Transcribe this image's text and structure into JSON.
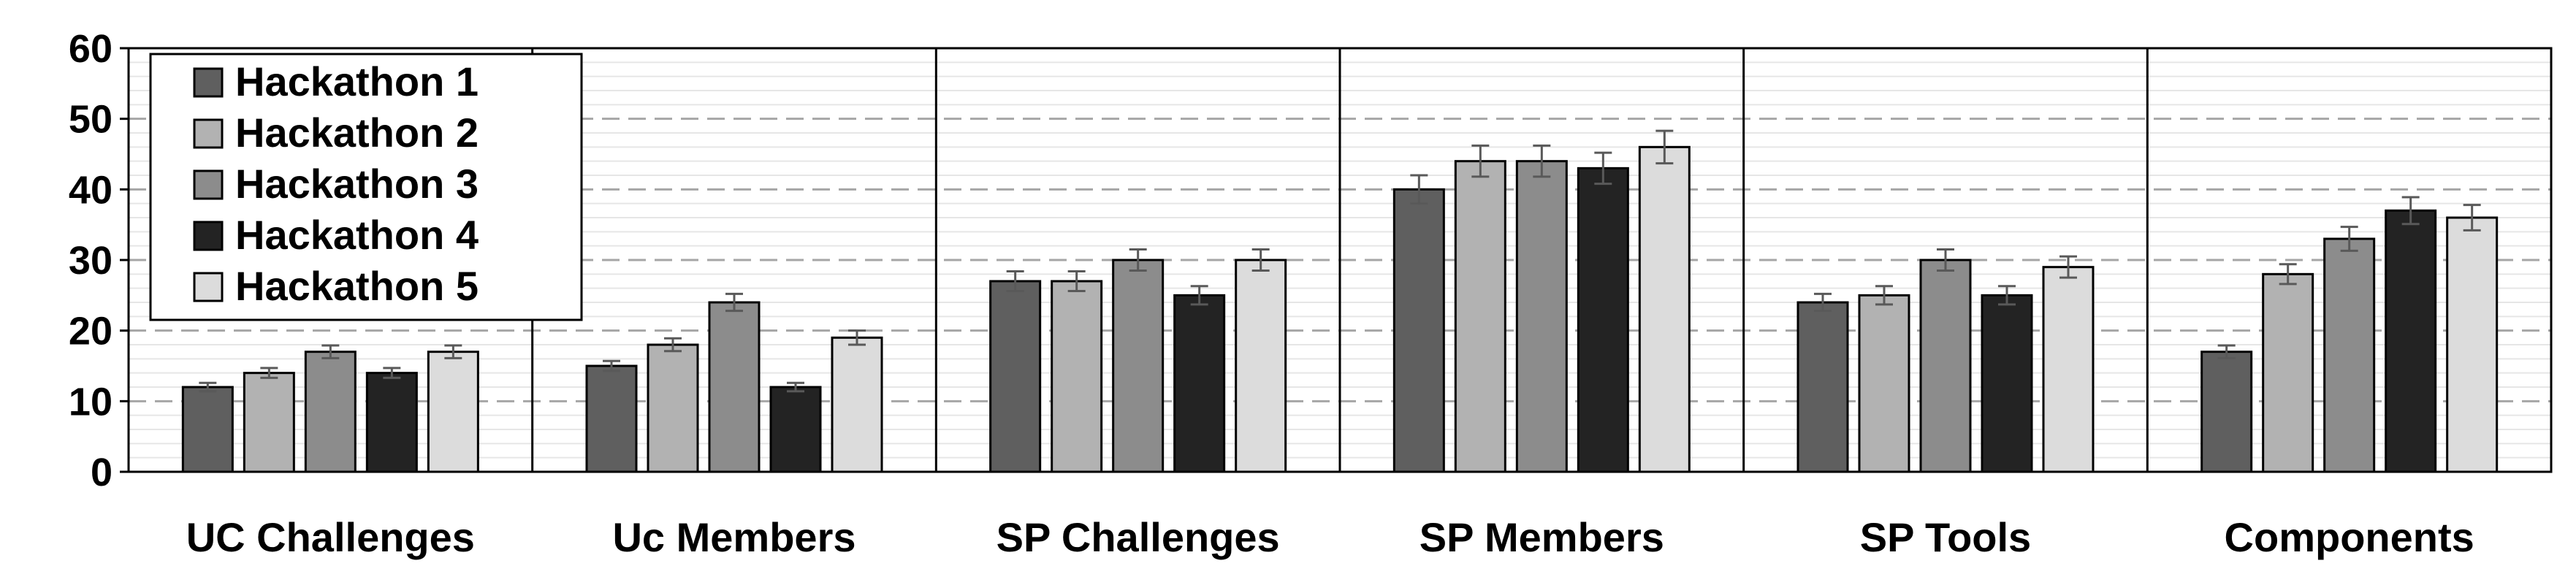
{
  "chart_data": {
    "type": "bar",
    "categories": [
      "UC Challenges",
      "Uc Members",
      "SP Challenges",
      "SP Members",
      "SP Tools",
      "Components"
    ],
    "series": [
      {
        "name": "Hackathon 1",
        "color": "#5f5f5f",
        "values": [
          12,
          15,
          27,
          40,
          24,
          17
        ],
        "errors": [
          0.6,
          0.7,
          1.4,
          2.0,
          1.2,
          0.9
        ]
      },
      {
        "name": "Hackathon 2",
        "color": "#b2b2b2",
        "values": [
          14,
          18,
          27,
          44,
          25,
          28
        ],
        "errors": [
          0.7,
          0.9,
          1.4,
          2.2,
          1.3,
          1.4
        ]
      },
      {
        "name": "Hackathon 3",
        "color": "#8c8c8c",
        "values": [
          17,
          24,
          30,
          44,
          30,
          33
        ],
        "errors": [
          0.9,
          1.2,
          1.5,
          2.2,
          1.5,
          1.7
        ]
      },
      {
        "name": "Hackathon 4",
        "color": "#232323",
        "values": [
          14,
          12,
          25,
          43,
          25,
          37
        ],
        "errors": [
          0.7,
          0.6,
          1.3,
          2.2,
          1.3,
          1.9
        ]
      },
      {
        "name": "Hackathon 5",
        "color": "#dcdcdc",
        "values": [
          17,
          19,
          30,
          46,
          29,
          36
        ],
        "errors": [
          0.9,
          1.0,
          1.5,
          2.3,
          1.5,
          1.8
        ]
      }
    ],
    "ylim": [
      0,
      60
    ],
    "yticks": [
      "0",
      "10",
      "20",
      "30",
      "40",
      "50",
      "60"
    ],
    "title": "",
    "xlabel": "",
    "ylabel": "",
    "grid": "horizontal dashed major, light minor",
    "legend_position": "top-left"
  }
}
